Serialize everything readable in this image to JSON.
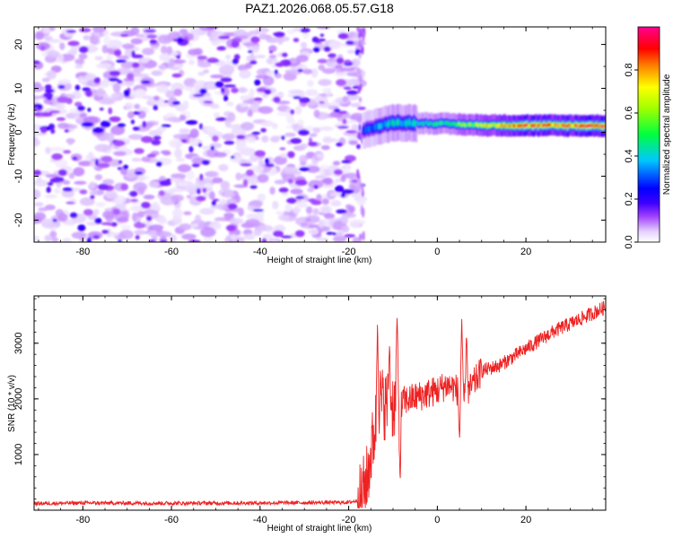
{
  "figure": {
    "title": "PAZ1.2026.068.05.57.G18"
  },
  "chart_data": [
    {
      "type": "heatmap",
      "title": "PAZ1.2026.068.05.57.G18",
      "xlabel": "Height of straight line (km)",
      "ylabel": "Frequency (Hz)",
      "xlim": [
        -91,
        38
      ],
      "ylim": [
        -25,
        24
      ],
      "x_ticks": [
        -80,
        -60,
        -40,
        -20,
        0,
        20
      ],
      "y_ticks": [
        -20,
        -10,
        0,
        10,
        20
      ],
      "noise_region": {
        "x_range": [
          -91,
          -17
        ],
        "description_level": "low"
      },
      "signal_band": {
        "x_start": -17,
        "x_end": 38,
        "center_frequency_hz": [
          {
            "x": -17,
            "f": 0.5
          },
          {
            "x": -10,
            "f": 2.2
          },
          {
            "x": 0,
            "f": 2.0
          },
          {
            "x": 10,
            "f": 1.6
          },
          {
            "x": 38,
            "f": 1.5
          }
        ],
        "peak_amplitude": [
          {
            "x": -17,
            "a": 0.3
          },
          {
            "x": -12,
            "a": 0.42
          },
          {
            "x": 0,
            "a": 0.5
          },
          {
            "x": 10,
            "a": 0.75
          },
          {
            "x": 20,
            "a": 0.92
          },
          {
            "x": 38,
            "a": 0.95
          }
        ]
      },
      "colorbar": {
        "label": "Normalized spectral amplitude",
        "range": [
          0.0,
          1.0
        ],
        "ticks": [
          "0.0",
          "0.2",
          "0.4",
          "0.6",
          "0.8"
        ],
        "tick_values": [
          0.0,
          0.2,
          0.4,
          0.6,
          0.8
        ],
        "colors": [
          "#ffffff",
          "#d6b8ff",
          "#8a00ff",
          "#0000ff",
          "#00ffff",
          "#00ff00",
          "#ffff00",
          "#ff8000",
          "#ff0000",
          "#ff00b0"
        ]
      }
    },
    {
      "type": "line",
      "title": "",
      "xlabel": "Height of straight line (km)",
      "ylabel": "SNR (10 * v/v)",
      "xlim": [
        -91,
        38
      ],
      "ylim": [
        0,
        3850
      ],
      "x_ticks": [
        -80,
        -60,
        -40,
        -20,
        0,
        20
      ],
      "y_ticks": [
        1000,
        2000,
        3000
      ],
      "series": [
        {
          "name": "SNR",
          "color": "#ee2222",
          "x": [
            -91,
            -80,
            -60,
            -40,
            -20,
            -17.5,
            -16,
            -15,
            -14,
            -13,
            -12,
            -10,
            -8,
            -6,
            -4,
            -2,
            0,
            2,
            4,
            6,
            8,
            10,
            14,
            18,
            22,
            26,
            30,
            34,
            38
          ],
          "y": [
            120,
            130,
            125,
            130,
            140,
            180,
            500,
            1000,
            1500,
            2000,
            1900,
            1900,
            1950,
            2000,
            2050,
            2100,
            2150,
            2250,
            2200,
            2000,
            2250,
            2500,
            2600,
            2800,
            3000,
            3200,
            3350,
            3500,
            3650
          ],
          "spikes": [
            {
              "x": -13.5,
              "y": 3430
            },
            {
              "x": -10.8,
              "y": 3020
            },
            {
              "x": -9.1,
              "y": 3530
            },
            {
              "x": -8.4,
              "y": 480
            },
            {
              "x": 5.0,
              "y": 1250
            },
            {
              "x": 5.5,
              "y": 3470
            },
            {
              "x": 6.6,
              "y": 3230
            }
          ]
        }
      ]
    }
  ]
}
